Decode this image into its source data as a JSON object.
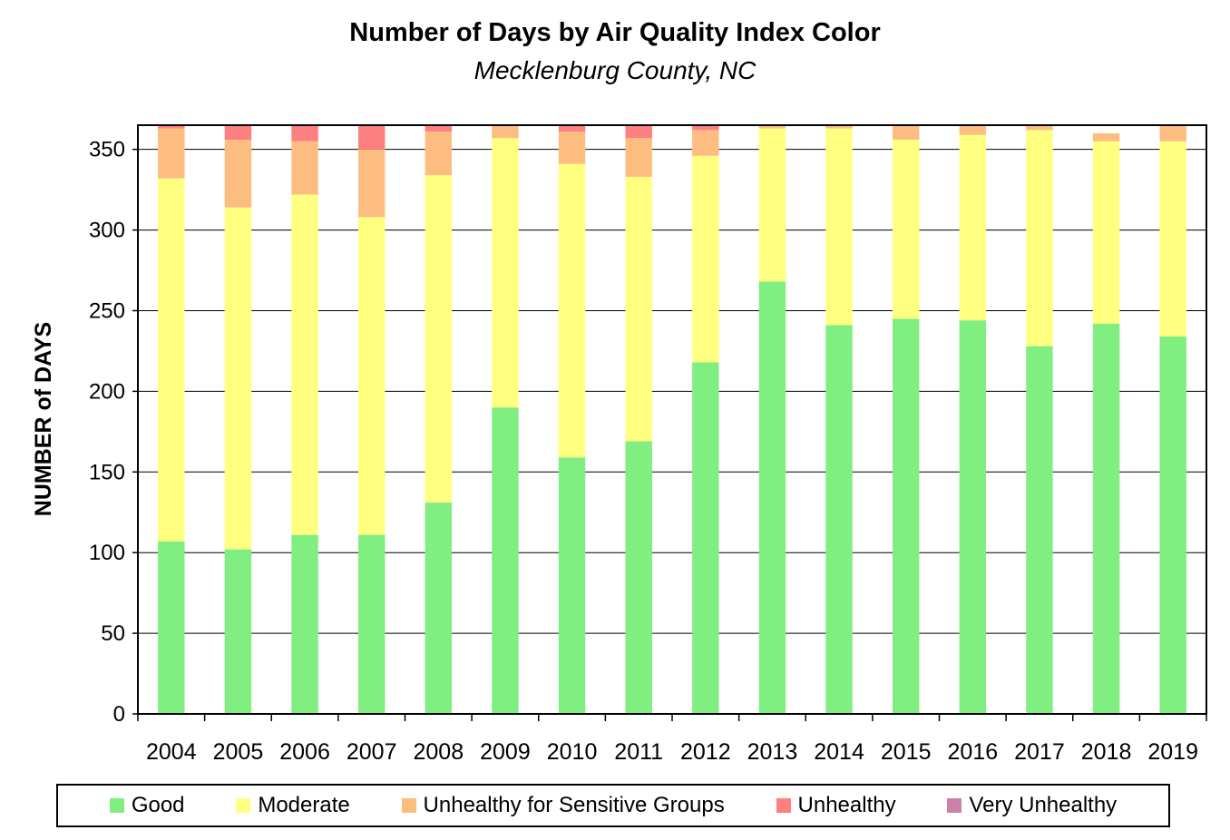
{
  "chart_data": {
    "type": "bar",
    "stacked": true,
    "title": "Number of Days by Air Quality Index Color",
    "subtitle": "Mecklenburg County, NC",
    "xlabel": "",
    "ylabel": "NUMBER of DAYS",
    "ylim": [
      0,
      365
    ],
    "yticks": [
      0,
      50,
      100,
      150,
      200,
      250,
      300,
      350
    ],
    "grid": true,
    "legend_position": "bottom",
    "categories": [
      "2004",
      "2005",
      "2006",
      "2007",
      "2008",
      "2009",
      "2010",
      "2011",
      "2012",
      "2013",
      "2014",
      "2015",
      "2016",
      "2017",
      "2018",
      "2019"
    ],
    "series": [
      {
        "name": "Good",
        "color": "#80ee80",
        "values": [
          107,
          102,
          111,
          111,
          131,
          190,
          159,
          169,
          218,
          268,
          241,
          245,
          244,
          228,
          242,
          234
        ]
      },
      {
        "name": "Moderate",
        "color": "#ffff80",
        "values": [
          225,
          212,
          211,
          197,
          203,
          167,
          182,
          164,
          128,
          95,
          122,
          111,
          115,
          134,
          113,
          121
        ]
      },
      {
        "name": "Unhealthy for Sensitive Groups",
        "color": "#fdbd80",
        "values": [
          31,
          42,
          33,
          42,
          27,
          8,
          20,
          24,
          16,
          2,
          2,
          9,
          6,
          3,
          5,
          10
        ]
      },
      {
        "name": "Unhealthy",
        "color": "#fd8080",
        "values": [
          2,
          9,
          10,
          15,
          4,
          0,
          4,
          8,
          3,
          0,
          0,
          0,
          0,
          0,
          0,
          0
        ]
      },
      {
        "name": "Very Unhealthy",
        "color": "#cc80aa",
        "values": [
          0,
          0,
          0,
          0,
          0,
          0,
          0,
          0,
          0,
          0,
          0,
          0,
          0,
          0,
          0,
          0
        ]
      }
    ]
  }
}
